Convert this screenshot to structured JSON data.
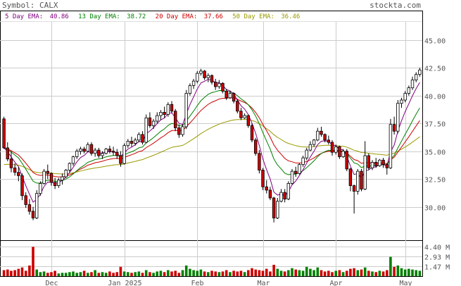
{
  "header": {
    "symbol_text": "Symbol: CALX",
    "site_text": "stockta.com"
  },
  "legend": [
    {
      "label": "5 Day EMA:",
      "value": "40.86",
      "color": "#800080"
    },
    {
      "label": "13 Day EMA:",
      "value": "38.72",
      "color": "#008000"
    },
    {
      "label": "20 Day EMA:",
      "value": "37.66",
      "color": "#cc0000"
    },
    {
      "label": "50 Day EMA:",
      "value": "36.46",
      "color": "#999900"
    }
  ],
  "colors": {
    "up": "#ffffff",
    "down": "#cc0000",
    "vol_up": "#008000",
    "vol_down": "#cc0000",
    "grid": "#cccccc",
    "frame": "#000000"
  },
  "chart_data": {
    "type": "candlestick",
    "price_axis": {
      "ticks": [
        "45.00",
        "42.50",
        "40.00",
        "37.50",
        "35.00",
        "32.50",
        "30.00"
      ],
      "range": [
        27.0,
        46.5
      ]
    },
    "volume_axis": {
      "ticks": [
        "4.40 M",
        "2.93 M",
        "1.47 M"
      ],
      "range": [
        0,
        5.4
      ]
    },
    "x_labels": [
      {
        "label": "Dec",
        "index": 13
      },
      {
        "label": "Jan 2025",
        "index": 33
      },
      {
        "label": "Feb",
        "index": 53
      },
      {
        "label": "Mar",
        "index": 71
      },
      {
        "label": "Apr",
        "index": 91
      },
      {
        "label": "May",
        "index": 110
      }
    ],
    "ohlc": [
      [
        37.9,
        38.1,
        35.2,
        35.3
      ],
      [
        35.3,
        35.8,
        34.1,
        34.3
      ],
      [
        34.3,
        35.0,
        33.1,
        33.5
      ],
      [
        33.5,
        33.9,
        32.8,
        33.1
      ],
      [
        33.1,
        33.6,
        32.3,
        32.8
      ],
      [
        32.8,
        33.0,
        30.6,
        31.0
      ],
      [
        31.0,
        31.3,
        29.9,
        30.2
      ],
      [
        30.2,
        30.7,
        29.3,
        29.6
      ],
      [
        29.6,
        30.0,
        28.8,
        29.0
      ],
      [
        29.0,
        31.5,
        28.9,
        31.2
      ],
      [
        31.2,
        32.3,
        31.0,
        32.1
      ],
      [
        32.1,
        33.4,
        32.0,
        33.2
      ],
      [
        33.2,
        33.8,
        32.5,
        33.0
      ],
      [
        33.0,
        33.1,
        31.9,
        32.2
      ],
      [
        32.2,
        32.6,
        31.6,
        31.9
      ],
      [
        31.9,
        32.6,
        31.7,
        32.4
      ],
      [
        32.4,
        33.0,
        32.0,
        32.7
      ],
      [
        32.7,
        33.4,
        32.6,
        33.3
      ],
      [
        33.3,
        34.0,
        33.1,
        33.9
      ],
      [
        33.9,
        34.6,
        33.7,
        34.5
      ],
      [
        34.5,
        35.2,
        34.3,
        35.0
      ],
      [
        35.0,
        35.4,
        34.7,
        35.2
      ],
      [
        35.2,
        35.4,
        34.8,
        35.0
      ],
      [
        35.0,
        35.8,
        34.9,
        35.6
      ],
      [
        35.6,
        35.8,
        34.6,
        34.8
      ],
      [
        34.8,
        35.3,
        34.5,
        35.1
      ],
      [
        35.1,
        35.3,
        34.4,
        34.6
      ],
      [
        34.6,
        35.0,
        34.3,
        34.8
      ],
      [
        34.8,
        35.3,
        34.7,
        35.2
      ],
      [
        35.2,
        35.5,
        34.8,
        35.0
      ],
      [
        35.0,
        35.4,
        34.6,
        34.9
      ],
      [
        34.9,
        35.2,
        34.3,
        34.6
      ],
      [
        34.6,
        35.0,
        33.6,
        33.9
      ],
      [
        33.9,
        35.7,
        33.8,
        35.5
      ],
      [
        35.5,
        36.1,
        35.3,
        35.9
      ],
      [
        35.9,
        36.3,
        35.4,
        35.7
      ],
      [
        35.7,
        36.2,
        35.5,
        36.0
      ],
      [
        36.0,
        36.7,
        35.8,
        36.5
      ],
      [
        36.5,
        36.8,
        35.6,
        35.8
      ],
      [
        35.8,
        38.3,
        35.7,
        38.0
      ],
      [
        38.0,
        38.5,
        37.1,
        37.3
      ],
      [
        37.3,
        37.9,
        37.0,
        37.7
      ],
      [
        37.7,
        38.5,
        37.5,
        38.2
      ],
      [
        38.2,
        38.7,
        37.8,
        38.5
      ],
      [
        38.5,
        39.0,
        38.0,
        38.3
      ],
      [
        38.3,
        39.4,
        38.1,
        39.2
      ],
      [
        39.2,
        39.5,
        38.4,
        38.6
      ],
      [
        38.6,
        38.8,
        36.8,
        37.1
      ],
      [
        37.1,
        37.4,
        36.2,
        36.5
      ],
      [
        36.5,
        37.4,
        36.3,
        37.2
      ],
      [
        37.2,
        40.5,
        37.0,
        40.2
      ],
      [
        40.2,
        41.1,
        40.0,
        40.9
      ],
      [
        40.9,
        41.5,
        40.6,
        41.3
      ],
      [
        41.3,
        42.2,
        41.1,
        42.0
      ],
      [
        42.0,
        42.4,
        41.8,
        42.2
      ],
      [
        42.2,
        42.3,
        41.4,
        41.6
      ],
      [
        41.6,
        42.0,
        41.2,
        41.8
      ],
      [
        41.8,
        41.9,
        41.0,
        41.2
      ],
      [
        41.2,
        41.5,
        40.5,
        40.8
      ],
      [
        40.8,
        41.4,
        40.6,
        41.1
      ],
      [
        41.1,
        41.2,
        40.2,
        40.4
      ],
      [
        40.4,
        40.6,
        39.6,
        39.8
      ],
      [
        39.8,
        40.4,
        39.7,
        40.2
      ],
      [
        40.2,
        40.3,
        39.3,
        39.5
      ],
      [
        39.5,
        39.7,
        38.4,
        38.6
      ],
      [
        38.6,
        38.9,
        37.8,
        38.0
      ],
      [
        38.0,
        38.4,
        37.9,
        38.2
      ],
      [
        38.2,
        38.3,
        37.1,
        37.3
      ],
      [
        37.3,
        37.5,
        35.8,
        36.0
      ],
      [
        36.0,
        36.2,
        34.6,
        34.8
      ],
      [
        34.8,
        35.1,
        33.0,
        33.3
      ],
      [
        33.3,
        33.5,
        31.5,
        31.8
      ],
      [
        31.8,
        32.4,
        31.2,
        31.5
      ],
      [
        31.5,
        31.8,
        30.6,
        30.8
      ],
      [
        30.8,
        30.9,
        28.6,
        29.0
      ],
      [
        29.0,
        30.8,
        28.9,
        30.5
      ],
      [
        30.5,
        31.6,
        30.4,
        31.3
      ],
      [
        31.3,
        31.6,
        30.4,
        30.7
      ],
      [
        30.7,
        32.3,
        30.6,
        32.1
      ],
      [
        32.1,
        33.4,
        32.0,
        33.2
      ],
      [
        33.2,
        33.6,
        32.7,
        33.0
      ],
      [
        33.0,
        33.9,
        32.9,
        33.8
      ],
      [
        33.8,
        34.6,
        33.6,
        34.4
      ],
      [
        34.4,
        35.3,
        34.2,
        35.1
      ],
      [
        35.1,
        35.9,
        35.0,
        35.6
      ],
      [
        35.6,
        36.1,
        35.4,
        36.0
      ],
      [
        36.0,
        37.1,
        35.9,
        36.8
      ],
      [
        36.8,
        37.2,
        36.3,
        36.5
      ],
      [
        36.5,
        36.6,
        35.8,
        36.0
      ],
      [
        36.0,
        36.4,
        35.6,
        35.8
      ],
      [
        35.8,
        36.0,
        34.6,
        34.9
      ],
      [
        34.9,
        35.6,
        34.7,
        35.4
      ],
      [
        35.4,
        35.5,
        34.3,
        34.5
      ],
      [
        34.5,
        35.2,
        34.4,
        35.0
      ],
      [
        35.0,
        35.2,
        33.2,
        33.4
      ],
      [
        33.4,
        33.5,
        31.4,
        31.9
      ],
      [
        31.9,
        32.0,
        29.4,
        31.4
      ],
      [
        31.4,
        33.4,
        31.1,
        33.2
      ],
      [
        33.2,
        33.4,
        31.4,
        31.6
      ],
      [
        31.6,
        35.9,
        31.5,
        34.6
      ],
      [
        34.6,
        34.8,
        33.3,
        33.5
      ],
      [
        33.5,
        34.2,
        33.3,
        34.0
      ],
      [
        34.0,
        34.4,
        33.5,
        33.7
      ],
      [
        33.7,
        34.3,
        33.6,
        34.2
      ],
      [
        34.2,
        34.4,
        33.5,
        33.8
      ],
      [
        33.8,
        33.9,
        32.9,
        33.5
      ],
      [
        33.5,
        37.9,
        33.4,
        37.4
      ],
      [
        37.4,
        38.1,
        36.5,
        36.8
      ],
      [
        36.8,
        39.6,
        36.6,
        39.3
      ],
      [
        39.3,
        39.8,
        38.9,
        39.6
      ],
      [
        39.6,
        40.4,
        39.4,
        40.2
      ],
      [
        40.2,
        40.9,
        40.0,
        40.7
      ],
      [
        40.7,
        41.7,
        40.5,
        41.4
      ],
      [
        41.4,
        42.1,
        41.2,
        41.9
      ],
      [
        41.9,
        42.5,
        41.7,
        42.3
      ]
    ],
    "volume": [
      0.9,
      1.0,
      0.8,
      0.9,
      1.1,
      1.3,
      0.8,
      1.6,
      4.4,
      1.0,
      0.6,
      0.7,
      0.5,
      0.6,
      0.8,
      0.4,
      0.5,
      0.5,
      0.6,
      0.7,
      0.5,
      0.6,
      0.8,
      0.5,
      0.6,
      0.9,
      0.5,
      0.6,
      0.5,
      0.7,
      0.5,
      0.6,
      1.4,
      0.7,
      0.6,
      0.5,
      0.6,
      0.7,
      0.5,
      0.9,
      0.6,
      0.5,
      0.7,
      0.8,
      0.6,
      0.9,
      0.7,
      0.8,
      0.5,
      0.9,
      1.6,
      1.1,
      0.9,
      0.8,
      1.0,
      0.7,
      0.6,
      0.8,
      0.7,
      0.6,
      0.7,
      0.9,
      0.6,
      0.8,
      0.7,
      0.8,
      0.6,
      0.9,
      1.2,
      1.0,
      0.9,
      0.8,
      1.1,
      0.7,
      1.7,
      1.1,
      0.8,
      0.7,
      0.9,
      1.2,
      1.0,
      0.9,
      0.8,
      1.4,
      1.1,
      0.9,
      1.3,
      0.9,
      0.7,
      0.8,
      0.6,
      0.8,
      0.9,
      0.6,
      0.8,
      1.1,
      1.2,
      0.9,
      1.0,
      1.3,
      0.8,
      0.7,
      0.6,
      0.8,
      0.7,
      0.9,
      2.9,
      1.4,
      1.6,
      1.2,
      1.0,
      1.1,
      1.0,
      0.9,
      0.8
    ]
  }
}
